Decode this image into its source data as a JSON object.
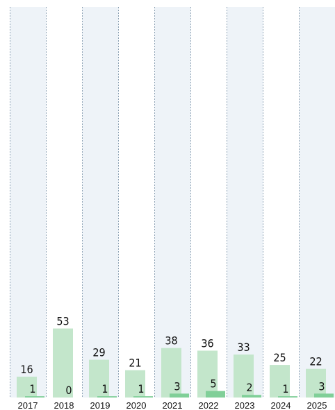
{
  "chart_data": {
    "type": "bar",
    "categories": [
      "2017",
      "2018",
      "2019",
      "2020",
      "2021",
      "2022",
      "2023",
      "2024",
      "2025"
    ],
    "series": [
      {
        "color": "#c3e6cb",
        "values": [
          16,
          53,
          29,
          21,
          38,
          36,
          33,
          25,
          22
        ]
      },
      {
        "color": "#80cf98",
        "values": [
          1,
          0,
          1,
          1,
          3,
          5,
          2,
          1,
          3
        ]
      }
    ],
    "ylim": [
      0,
      300
    ],
    "band_shading": true
  }
}
